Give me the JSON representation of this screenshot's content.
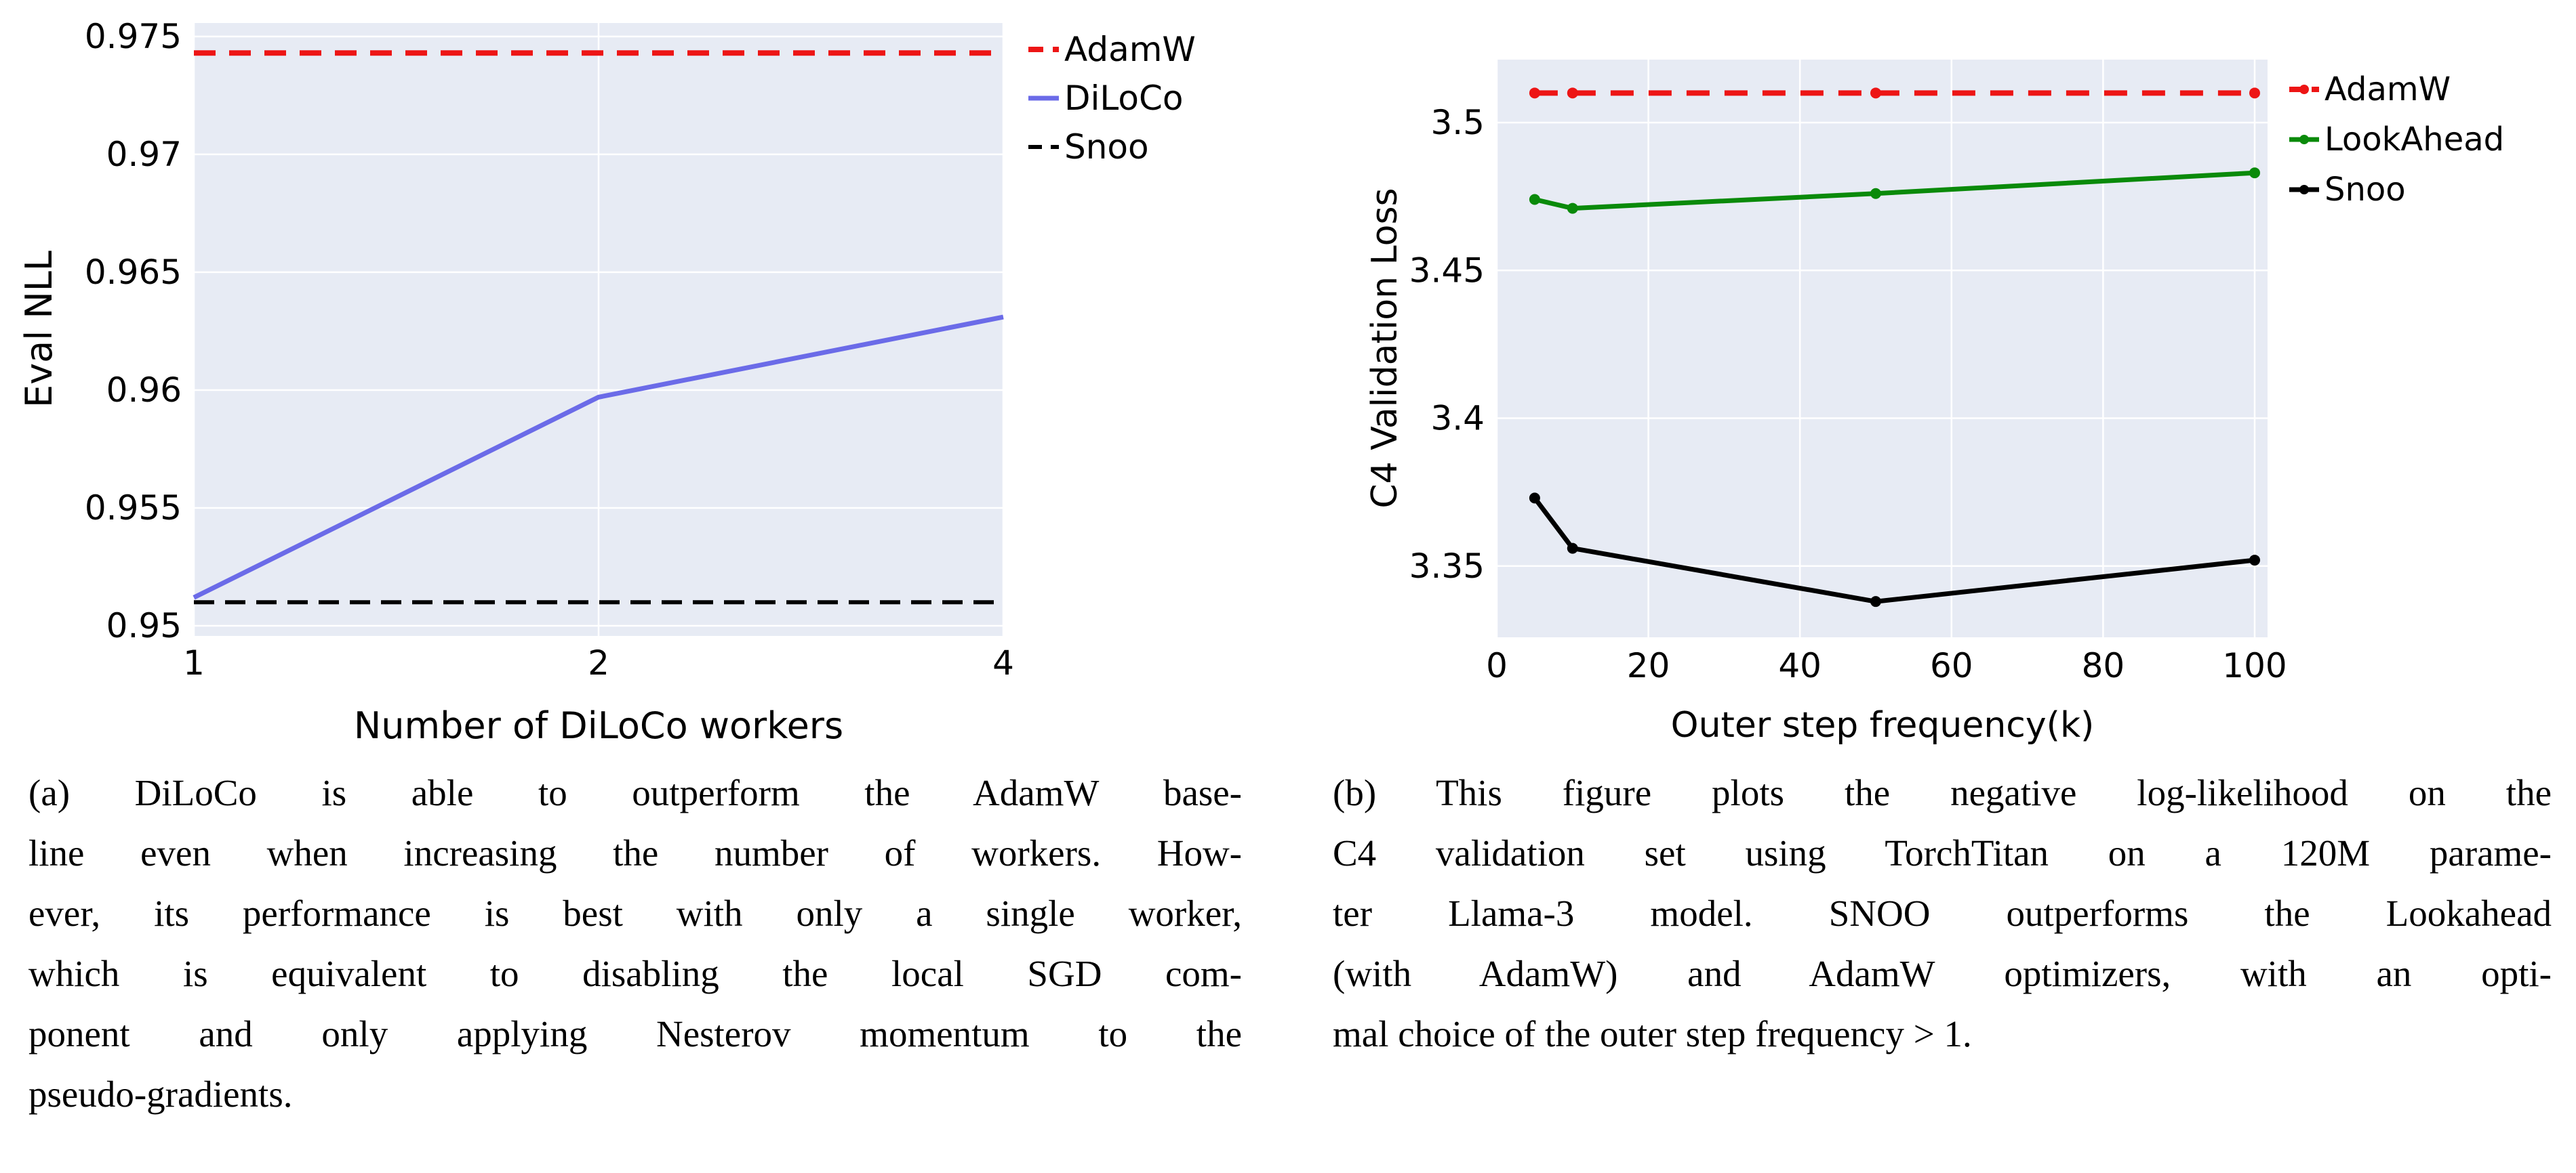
{
  "theme": {
    "page_bg": "#ffffff",
    "plot_bg": "#e7ebf4",
    "grid_color": "#ffffff",
    "text_color": "#000000",
    "adamw_red": "#ed1515",
    "diloco_blue": "#6b6be8",
    "lookahead_green": "#0a8a0a",
    "snoo_black": "#000000"
  },
  "chart_data": [
    {
      "id": "a",
      "type": "line",
      "title": "",
      "xlabel": "Number of DiLoCo workers",
      "ylabel": "Eval NLL",
      "xscale": "log2",
      "xlim": [
        1,
        4
      ],
      "ylim": [
        0.94957,
        0.97557
      ],
      "grid": true,
      "legend_position": "outside-top-right",
      "xticks": {
        "values": [
          1,
          2,
          4
        ],
        "labels": [
          "1",
          "2",
          "4"
        ]
      },
      "yticks": {
        "values": [
          0.95,
          0.955,
          0.96,
          0.965,
          0.97,
          0.975
        ],
        "labels": [
          "0.95",
          "0.955",
          "0.96",
          "0.965",
          "0.97",
          "0.975"
        ]
      },
      "series": [
        {
          "name": "AdamW",
          "color": "#ed1515",
          "style": "dashed",
          "marker": "none",
          "x": [
            1,
            4
          ],
          "y": [
            0.9743,
            0.9743
          ]
        },
        {
          "name": "DiLoCo",
          "color": "#6b6be8",
          "style": "solid",
          "marker": "none",
          "x": [
            1,
            2,
            4
          ],
          "y": [
            0.9512,
            0.9597,
            0.9631
          ]
        },
        {
          "name": "Snoo",
          "color": "#000000",
          "style": "dashed",
          "marker": "none",
          "x": [
            1,
            4
          ],
          "y": [
            0.951,
            0.951
          ]
        }
      ]
    },
    {
      "id": "b",
      "type": "line",
      "title": "",
      "xlabel": "Outer step frequency(k)",
      "ylabel": "C4 Validation Loss",
      "xscale": "linear",
      "xlim": [
        0,
        101.7
      ],
      "ylim": [
        3.3259,
        3.5213
      ],
      "grid": true,
      "legend_position": "outside-top-right",
      "xticks": {
        "values": [
          0,
          20,
          40,
          60,
          80,
          100
        ],
        "labels": [
          "0",
          "20",
          "40",
          "60",
          "80",
          "100"
        ]
      },
      "yticks": {
        "values": [
          3.35,
          3.4,
          3.45,
          3.5
        ],
        "labels": [
          "3.35",
          "3.4",
          "3.45",
          "3.5"
        ]
      },
      "series": [
        {
          "name": "AdamW",
          "color": "#ed1515",
          "style": "dashed",
          "marker": "dot",
          "x": [
            5,
            10,
            50,
            100
          ],
          "y": [
            3.51,
            3.51,
            3.51,
            3.51
          ]
        },
        {
          "name": "LookAhead",
          "color": "#0a8a0a",
          "style": "solid",
          "marker": "dot",
          "x": [
            5,
            10,
            50,
            100
          ],
          "y": [
            3.474,
            3.471,
            3.476,
            3.483
          ]
        },
        {
          "name": "Snoo",
          "color": "#000000",
          "style": "solid",
          "marker": "dot",
          "x": [
            5,
            10,
            50,
            100
          ],
          "y": [
            3.373,
            3.356,
            3.338,
            3.352
          ]
        }
      ]
    }
  ],
  "captions": {
    "a": {
      "lines": [
        "(a) DiLoCo is able to outperform the AdamW base-",
        "line even when increasing the number of workers. How-",
        "ever, its performance is best with only a single worker,",
        "which is equivalent to disabling the local SGD com-",
        "ponent and only applying Nesterov momentum to the",
        "pseudo-gradients."
      ]
    },
    "b": {
      "lines": [
        "(b) This figure plots the negative log-likelihood on the",
        "C4 validation set using TorchTitan on a 120M parame-",
        "ter Llama-3 model. SNOO outperforms the Lookahead",
        "(with AdamW) and AdamW optimizers, with an opti-",
        "mal choice of the outer step frequency > 1."
      ]
    }
  }
}
